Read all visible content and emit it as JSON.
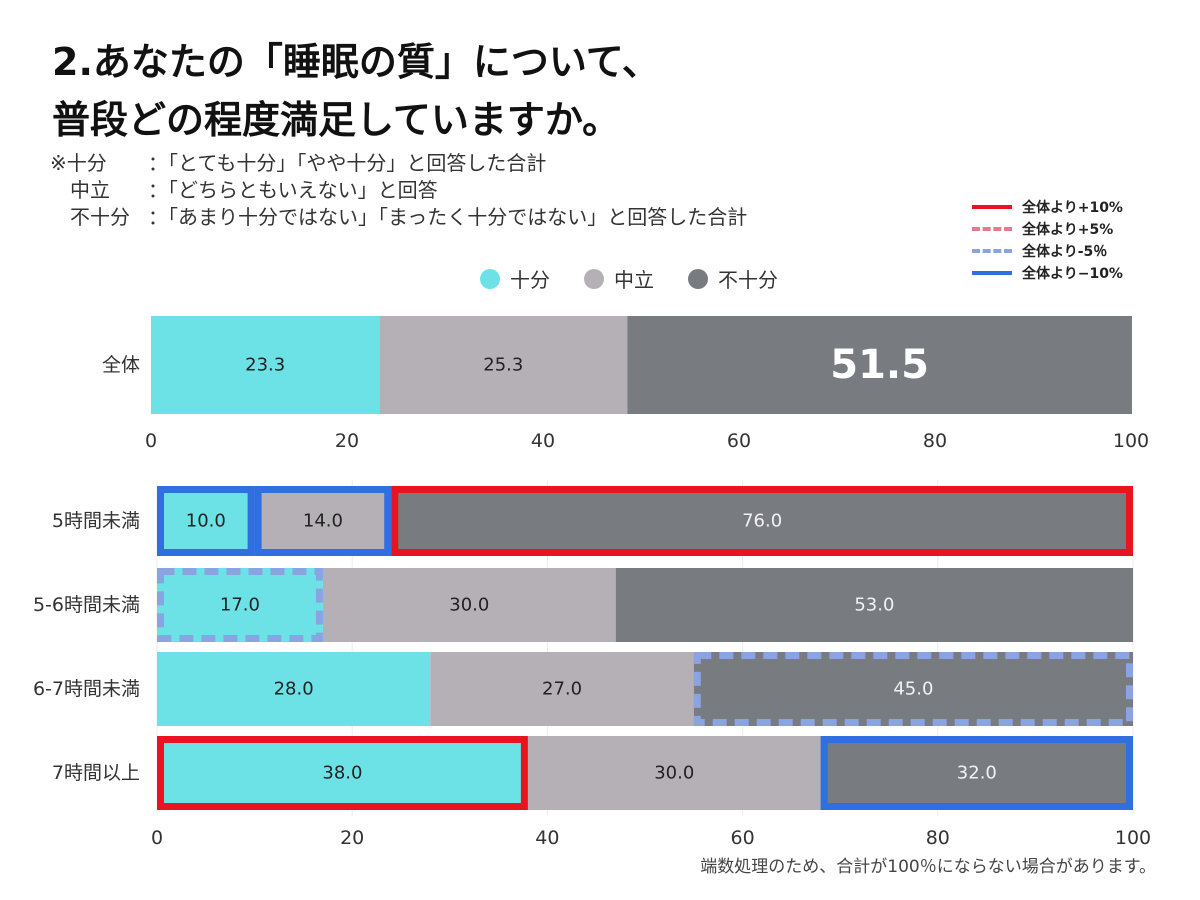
{
  "title_line1": "2.あなたの「睡眠の質」について、",
  "title_line2": "普段どの程度満足していますか。",
  "notes": [
    {
      "key": "※十分",
      "text": "：「とても十分」「やや十分」と回答した合計"
    },
    {
      "key": "　中立",
      "text": "：「どちらともいえない」と回答"
    },
    {
      "key": "　不十分",
      "text": "：「あまり十分ではない」「まったく十分ではない」と回答した合計"
    }
  ],
  "highlight_key": [
    {
      "style": "solid-red",
      "label": "全体より+10%"
    },
    {
      "style": "dash-pink",
      "label": "全体より+5%"
    },
    {
      "style": "dash-blue",
      "label": "全体より‐5％"
    },
    {
      "style": "solid-blue",
      "label": "全体より−10%"
    }
  ],
  "footnote": "端数処理のため、合計が100％にならない場合があります。",
  "colors": {
    "sufficient": "#6ce2e6",
    "neutral": "#b5b0b5",
    "insufficient": "#787b80",
    "plus10": "#e8141f",
    "minus5": "#8aa4e2",
    "minus10": "#2f6fe0"
  },
  "chart_data": [
    {
      "type": "bar",
      "orientation": "horizontal",
      "stacked": true,
      "categories": [
        "全体"
      ],
      "series": [
        {
          "name": "十分",
          "values": [
            23.3
          ]
        },
        {
          "name": "中立",
          "values": [
            25.3
          ]
        },
        {
          "name": "不十分",
          "values": [
            51.5
          ]
        }
      ],
      "xlim": [
        0,
        100
      ],
      "xticks": [
        "0",
        "20",
        "40",
        "60",
        "80",
        "100"
      ],
      "legend": "top-center",
      "grid": false
    },
    {
      "type": "bar",
      "orientation": "horizontal",
      "stacked": true,
      "categories": [
        "5時間未満",
        "5-6時間未満",
        "6-7時間未満",
        "7時間以上"
      ],
      "series": [
        {
          "name": "十分",
          "values": [
            10.0,
            17.0,
            28.0,
            38.0
          ]
        },
        {
          "name": "中立",
          "values": [
            14.0,
            30.0,
            27.0,
            30.0
          ]
        },
        {
          "name": "不十分",
          "values": [
            76.0,
            53.0,
            45.0,
            32.0
          ]
        }
      ],
      "highlights": [
        {
          "category": "5時間未満",
          "series": "十分",
          "style": "solid-blue"
        },
        {
          "category": "5時間未満",
          "series": "中立",
          "style": "solid-blue"
        },
        {
          "category": "5時間未満",
          "series": "不十分",
          "style": "solid-red"
        },
        {
          "category": "5-6時間未満",
          "series": "十分",
          "style": "dash-blue"
        },
        {
          "category": "6-7時間未満",
          "series": "不十分",
          "style": "dash-blue"
        },
        {
          "category": "7時間以上",
          "series": "十分",
          "style": "solid-red"
        },
        {
          "category": "7時間以上",
          "series": "不十分",
          "style": "solid-blue"
        }
      ],
      "xlim": [
        0,
        100
      ],
      "xticks": [
        "0",
        "20",
        "40",
        "60",
        "80",
        "100"
      ],
      "grid": true
    }
  ]
}
